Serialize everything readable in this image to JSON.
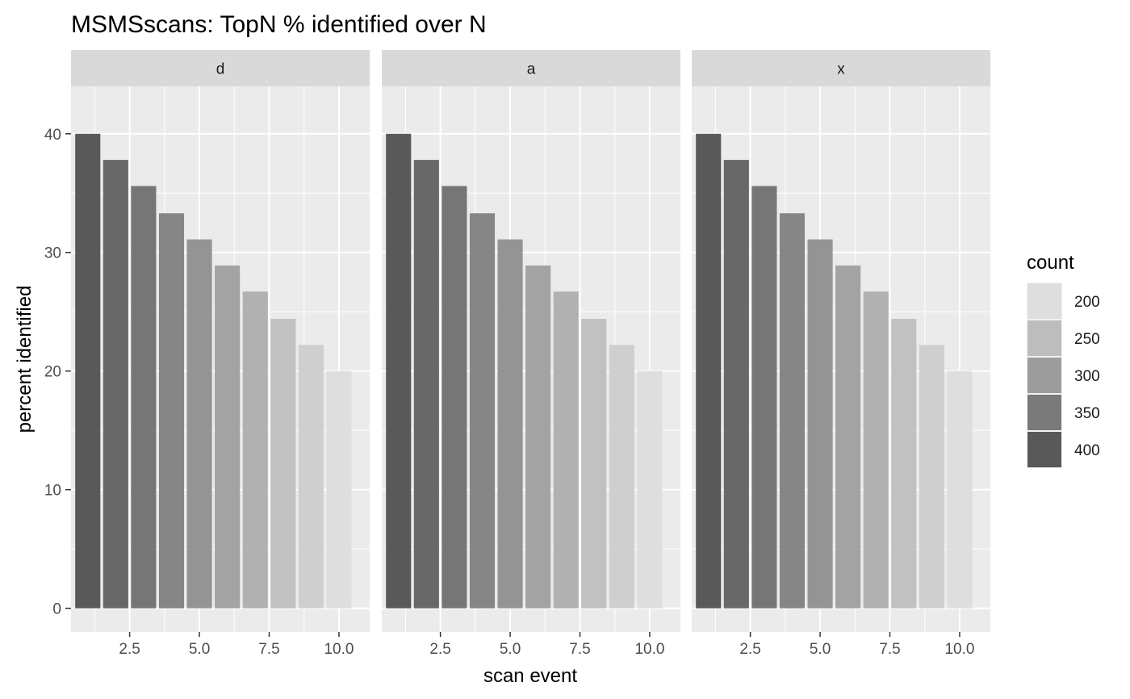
{
  "chart_data": {
    "type": "bar",
    "title": "MSMSscans: TopN % identified over N",
    "xlabel": "scan event",
    "ylabel": "percent identified",
    "facets": [
      "d",
      "a",
      "x"
    ],
    "x": [
      1,
      2,
      3,
      4,
      5,
      6,
      7,
      8,
      9,
      10
    ],
    "values": [
      40,
      37.8,
      35.6,
      33.3,
      31.1,
      28.9,
      26.7,
      24.4,
      22.2,
      20
    ],
    "counts": [
      400,
      378,
      356,
      333,
      311,
      289,
      267,
      244,
      222,
      200
    ],
    "xlim": [
      0.4,
      11.1
    ],
    "ylim": [
      -2,
      44
    ],
    "x_ticks": [
      2.5,
      5.0,
      7.5,
      10.0
    ],
    "x_tick_labels": [
      "2.5",
      "5.0",
      "7.5",
      "10.0"
    ],
    "y_ticks": [
      0,
      10,
      20,
      30,
      40
    ],
    "y_tick_labels": [
      "0",
      "10",
      "20",
      "30",
      "40"
    ],
    "grid": true,
    "legend": {
      "title": "count",
      "placement": "right",
      "items": [
        {
          "label": "200",
          "count": 200
        },
        {
          "label": "250",
          "count": 250
        },
        {
          "label": "300",
          "count": 300
        },
        {
          "label": "350",
          "count": 350
        },
        {
          "label": "400",
          "count": 400
        }
      ]
    },
    "colors": {
      "panel_background": "#ebebeb",
      "strip_background": "#d9d9d9",
      "grid": "#ffffff",
      "bar_dark": "#595959",
      "bar_light": "#dedede"
    }
  }
}
